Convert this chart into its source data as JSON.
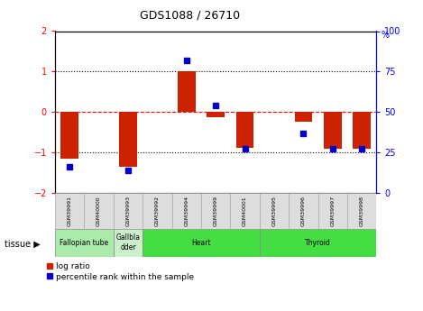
{
  "title": "GDS1088 / 26710",
  "samples": [
    "GSM39991",
    "GSM40000",
    "GSM39993",
    "GSM39992",
    "GSM39994",
    "GSM39999",
    "GSM40001",
    "GSM39995",
    "GSM39996",
    "GSM39997",
    "GSM39998"
  ],
  "log_ratios": [
    -1.15,
    0.0,
    -1.35,
    0.0,
    1.0,
    -0.12,
    -0.88,
    0.0,
    -0.25,
    -0.9,
    -0.9
  ],
  "percentile_ranks": [
    16,
    0,
    14,
    0,
    82,
    54,
    27,
    0,
    37,
    27,
    27
  ],
  "bar_color_red": "#cc2200",
  "bar_color_blue": "#0000cc",
  "ylim": [
    -2,
    2
  ],
  "y2lim": [
    0,
    100
  ],
  "yticks_left": [
    -2,
    -1,
    0,
    1,
    2
  ],
  "yticks_right": [
    0,
    25,
    50,
    75,
    100
  ],
  "legend_red": "log ratio",
  "legend_blue": "percentile rank within the sample",
  "tissue_label": "tissue",
  "bar_width": 0.6,
  "tissue_data": [
    {
      "label": "Fallopian tube",
      "start": 0,
      "end": 2,
      "color": "#aaeaaa"
    },
    {
      "label": "Gallbla\ndder",
      "start": 2,
      "end": 3,
      "color": "#ccf0cc"
    },
    {
      "label": "Heart",
      "start": 3,
      "end": 7,
      "color": "#44dd44"
    },
    {
      "label": "Thyroid",
      "start": 7,
      "end": 11,
      "color": "#44dd44"
    }
  ]
}
